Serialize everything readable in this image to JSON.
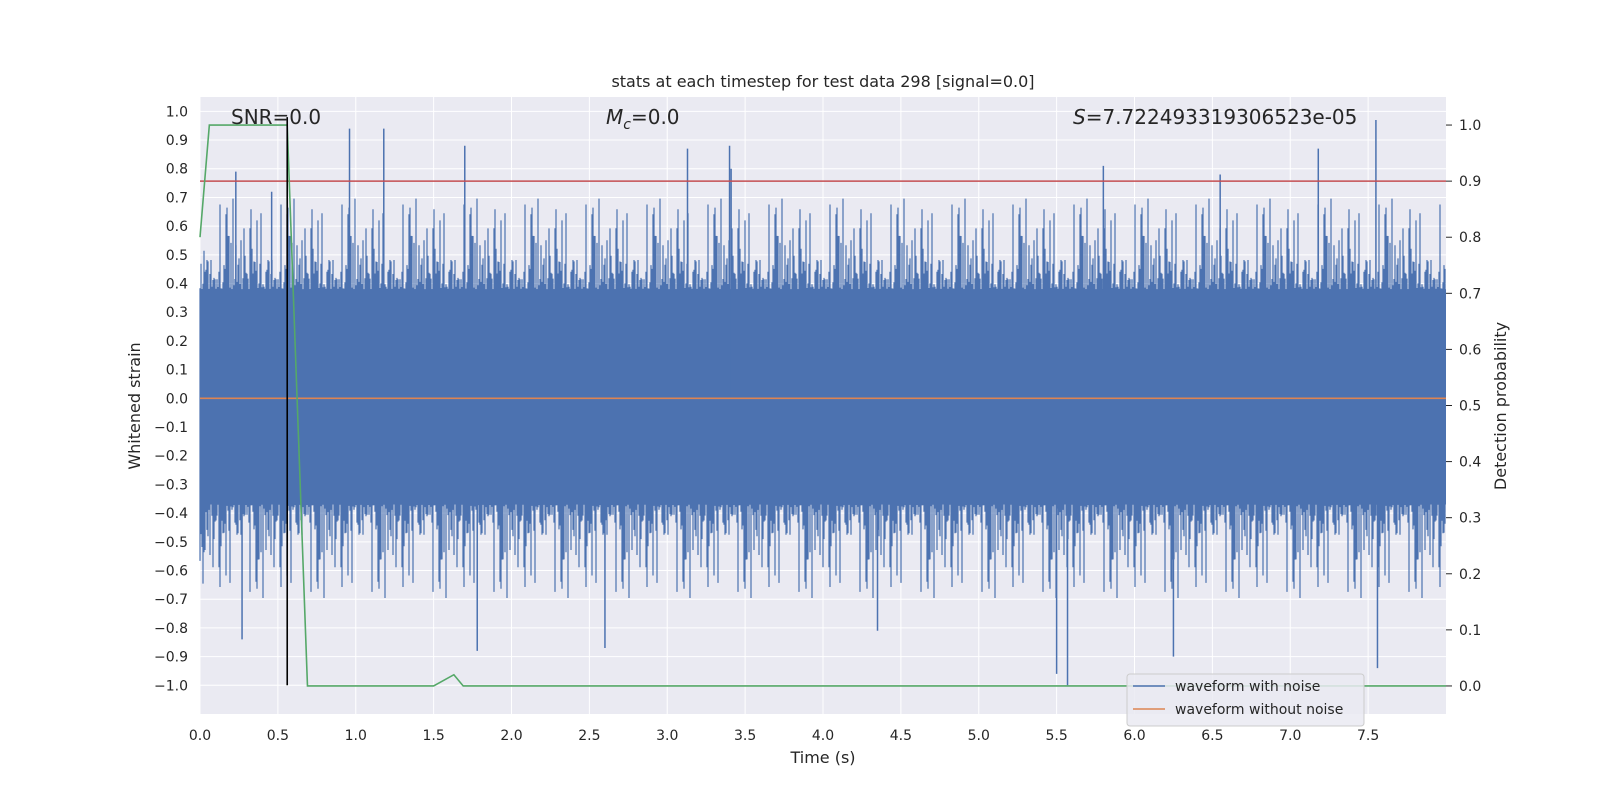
{
  "chart_data": {
    "type": "line",
    "title": "stats at each timestep for test data 298 [signal=0.0]",
    "xlabel": "Time (s)",
    "ylabel_left": "Whitened strain",
    "ylabel_right": "Detection probability",
    "xlim": [
      0.0,
      8.0
    ],
    "ylim_left": [
      -1.1,
      1.05
    ],
    "ylim_right": [
      -0.05,
      1.05
    ],
    "x_ticks": [
      0.0,
      0.5,
      1.0,
      1.5,
      2.0,
      2.5,
      3.0,
      3.5,
      4.0,
      4.5,
      5.0,
      5.5,
      6.0,
      6.5,
      7.0,
      7.5
    ],
    "x_tick_labels": [
      "0.0",
      "0.5",
      "1.0",
      "1.5",
      "2.0",
      "2.5",
      "3.0",
      "3.5",
      "4.0",
      "4.5",
      "5.0",
      "5.5",
      "6.0",
      "6.5",
      "7.0",
      "7.5"
    ],
    "y_left_ticks": [
      1.0,
      0.9,
      0.8,
      0.7,
      0.6,
      0.5,
      0.4,
      0.3,
      0.2,
      0.1,
      0.0,
      -0.1,
      -0.2,
      -0.3,
      -0.4,
      -0.5,
      -0.6,
      -0.7,
      -0.8,
      -0.9,
      -1.0
    ],
    "y_left_tick_labels": [
      "1.0",
      "0.9",
      "0.8",
      "0.7",
      "0.6",
      "0.5",
      "0.4",
      "0.3",
      "0.2",
      "0.1",
      "0.0",
      "−0.1",
      "−0.2",
      "−0.3",
      "−0.4",
      "−0.5",
      "−0.6",
      "−0.7",
      "−0.8",
      "−0.9",
      "−1.0"
    ],
    "y_right_ticks": [
      1.0,
      0.9,
      0.8,
      0.7,
      0.6,
      0.5,
      0.4,
      0.3,
      0.2,
      0.1,
      0.0
    ],
    "y_right_tick_labels": [
      "1.0",
      "0.9",
      "0.8",
      "0.7",
      "0.6",
      "0.5",
      "0.4",
      "0.3",
      "0.2",
      "0.1",
      "0.0"
    ],
    "annotations": {
      "snr": "SNR=0.0",
      "mc": "=0.0",
      "mc_symbol": "M",
      "mc_subscript": "c",
      "s_symbol": "S",
      "s_value": "=7.722493319306523e-05"
    },
    "series": [
      {
        "name": "waveform with noise",
        "axis": "left",
        "color": "#4c72b0",
        "kind": "noise",
        "band": [
          -0.37,
          0.38
        ],
        "envelope": [
          -0.7,
          0.7
        ],
        "spikes": [
          [
            0.23,
            0.79
          ],
          [
            0.27,
            -0.84
          ],
          [
            0.46,
            0.72
          ],
          [
            0.96,
            0.94
          ],
          [
            1.18,
            0.94
          ],
          [
            1.7,
            0.88
          ],
          [
            1.78,
            -0.88
          ],
          [
            2.6,
            -0.87
          ],
          [
            3.13,
            0.87
          ],
          [
            3.4,
            0.88
          ],
          [
            3.41,
            0.8
          ],
          [
            4.35,
            -0.81
          ],
          [
            5.5,
            -0.96
          ],
          [
            5.57,
            -1.0
          ],
          [
            5.8,
            0.81
          ],
          [
            6.25,
            -0.9
          ],
          [
            6.55,
            0.78
          ],
          [
            7.18,
            0.87
          ],
          [
            7.55,
            0.97
          ],
          [
            7.56,
            -0.94
          ]
        ]
      },
      {
        "name": "waveform without noise",
        "axis": "left",
        "color": "#dd8452",
        "x": [
          0.0,
          8.0
        ],
        "y": [
          0.0,
          0.0
        ]
      },
      {
        "name": "detection probability",
        "axis": "right",
        "color": "#55a868",
        "x": [
          0.0,
          0.06,
          0.12,
          0.56,
          0.69,
          1.5,
          1.63,
          1.69,
          8.0
        ],
        "y": [
          0.8,
          1.0,
          1.0,
          1.0,
          0.0,
          0.0,
          0.02,
          0.0,
          0.0
        ]
      }
    ],
    "threshold": {
      "axis": "right",
      "value": 0.9,
      "color": "#c44e52"
    },
    "marker_line": {
      "x": 0.56,
      "y_from": -1.0,
      "y_to": 0.98,
      "color": "#000000"
    },
    "legend": {
      "position": "lower-right",
      "entries": [
        {
          "label": "waveform with noise",
          "color": "#4c72b0"
        },
        {
          "label": "waveform without noise",
          "color": "#dd8452"
        }
      ]
    },
    "grid": true,
    "background": "#eaeaf2"
  }
}
